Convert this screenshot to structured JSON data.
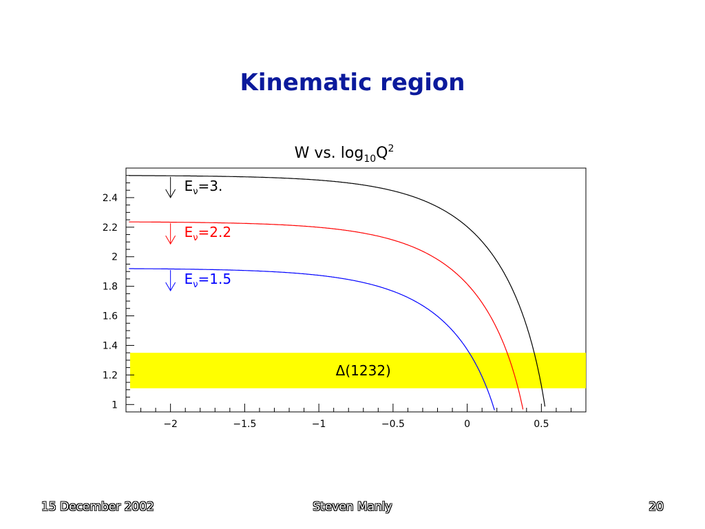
{
  "slide": {
    "title": "Kinematic region",
    "footer_date": "15 December 2002",
    "footer_author": "Steven Manly",
    "footer_page": "20"
  },
  "colors": {
    "title": "#0b1a9c",
    "band": "#ffff00",
    "series": [
      "#000000",
      "#ff0000",
      "#0000ff"
    ]
  },
  "chart_data": {
    "type": "line",
    "title_main": "W vs. log",
    "title_sub": "10",
    "title_var": "Q",
    "title_sup": "2",
    "xlabel": "",
    "ylabel": "",
    "xlim": [
      -2.3,
      0.8
    ],
    "ylim": [
      0.95,
      2.6
    ],
    "xticks": [
      -2,
      -1.5,
      -1,
      -0.5,
      0,
      0.5
    ],
    "xtick_labels": [
      "−2",
      "−1.5",
      "−1",
      "−0.5",
      "0",
      "0.5"
    ],
    "yticks": [
      1,
      1.2,
      1.4,
      1.6,
      1.8,
      2,
      2.2,
      2.4
    ],
    "ytick_labels": [
      "1",
      "1.2",
      "1.4",
      "1.6",
      "1.8",
      "2",
      "2.2",
      "2.4"
    ],
    "series": [
      {
        "name": "Eν=3.",
        "label_prefix": "E",
        "label_sub": "ν",
        "label_suffix": "=3.",
        "E": 3.0
      },
      {
        "name": "Eν=2.2",
        "label_prefix": "E",
        "label_sub": "ν",
        "label_suffix": "=2.2",
        "E": 2.2
      },
      {
        "name": "Eν=1.5",
        "label_prefix": "E",
        "label_sub": "ν",
        "label_suffix": "=1.5",
        "E": 1.5
      }
    ],
    "band": {
      "label": "Δ(1232)",
      "y_range": [
        1.11,
        1.35
      ]
    },
    "grid": false
  }
}
